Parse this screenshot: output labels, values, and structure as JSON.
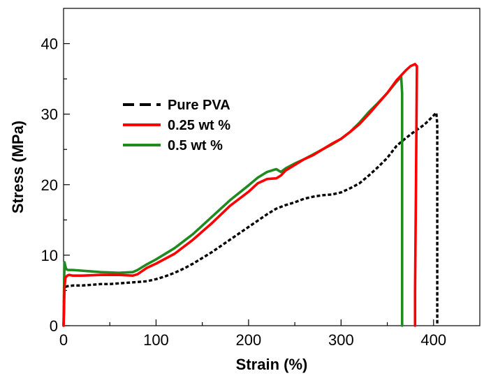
{
  "chart_data": {
    "type": "line",
    "title": "",
    "xlabel": "Strain (%)",
    "ylabel": "Stress (MPa)",
    "xlim": [
      0,
      450
    ],
    "ylim": [
      0,
      45
    ],
    "xticks": [
      0,
      100,
      200,
      300,
      400
    ],
    "yticks": [
      0,
      10,
      20,
      30,
      40
    ],
    "grid": false,
    "legend_position": "upper-left",
    "series": [
      {
        "name": "Pure PVA",
        "color": "#000000",
        "style": "dashed",
        "x": [
          0,
          0.5,
          1,
          2,
          4,
          6,
          10,
          20,
          30,
          40,
          50,
          60,
          70,
          80,
          90,
          100,
          110,
          120,
          130,
          140,
          150,
          160,
          170,
          180,
          190,
          200,
          210,
          220,
          230,
          240,
          250,
          260,
          270,
          280,
          290,
          300,
          310,
          320,
          330,
          340,
          350,
          360,
          370,
          380,
          390,
          400,
          403,
          404,
          404
        ],
        "y": [
          0,
          4.5,
          5.3,
          5.5,
          5.6,
          5.6,
          5.7,
          5.7,
          5.8,
          5.9,
          5.9,
          6.0,
          6.1,
          6.2,
          6.3,
          6.6,
          7.0,
          7.5,
          8.1,
          8.8,
          9.6,
          10.4,
          11.3,
          12.2,
          13.1,
          14.0,
          14.9,
          15.8,
          16.6,
          17.1,
          17.5,
          18.0,
          18.3,
          18.5,
          18.6,
          18.9,
          19.5,
          20.2,
          21.3,
          22.5,
          23.8,
          25.5,
          26.6,
          27.6,
          28.5,
          29.8,
          30.2,
          28.5,
          0
        ]
      },
      {
        "name": "0.25 wt %",
        "color": "#ff0000",
        "style": "solid",
        "x": [
          0,
          0.5,
          1,
          2,
          4,
          6,
          10,
          20,
          40,
          60,
          75,
          80,
          90,
          100,
          120,
          140,
          160,
          180,
          200,
          210,
          220,
          230,
          235,
          240,
          250,
          260,
          270,
          280,
          290,
          300,
          310,
          320,
          330,
          340,
          350,
          360,
          370,
          375,
          380,
          382,
          381,
          380,
          380
        ],
        "y": [
          0,
          2.0,
          5.5,
          6.8,
          7.1,
          7.2,
          7.1,
          7.1,
          7.2,
          7.2,
          7.1,
          7.3,
          8.2,
          8.8,
          10.2,
          12.2,
          14.5,
          17.0,
          19.0,
          20.2,
          20.8,
          20.9,
          21.3,
          22.0,
          22.8,
          23.6,
          24.2,
          25.0,
          25.8,
          26.5,
          27.5,
          28.6,
          30.0,
          31.5,
          33.0,
          34.8,
          36.2,
          36.8,
          37.1,
          36.8,
          20.0,
          5.0,
          0
        ]
      },
      {
        "name": "0.5 wt %",
        "color": "#1f8a1f",
        "style": "solid",
        "x": [
          0,
          0.5,
          1,
          2,
          3,
          5,
          10,
          20,
          40,
          60,
          75,
          80,
          90,
          100,
          120,
          140,
          160,
          180,
          200,
          210,
          220,
          230,
          235,
          240,
          250,
          260,
          270,
          280,
          290,
          300,
          310,
          320,
          330,
          340,
          350,
          360,
          365,
          366,
          366
        ],
        "y": [
          0,
          5.0,
          9.0,
          8.4,
          8.0,
          7.9,
          7.9,
          7.8,
          7.6,
          7.5,
          7.6,
          7.9,
          8.7,
          9.4,
          11.0,
          13.0,
          15.4,
          17.8,
          19.9,
          21.0,
          21.8,
          22.2,
          21.8,
          22.3,
          23.0,
          23.6,
          24.3,
          25.0,
          25.7,
          26.5,
          27.5,
          28.8,
          30.3,
          31.6,
          33.0,
          34.6,
          35.3,
          33.0,
          0
        ]
      }
    ]
  }
}
